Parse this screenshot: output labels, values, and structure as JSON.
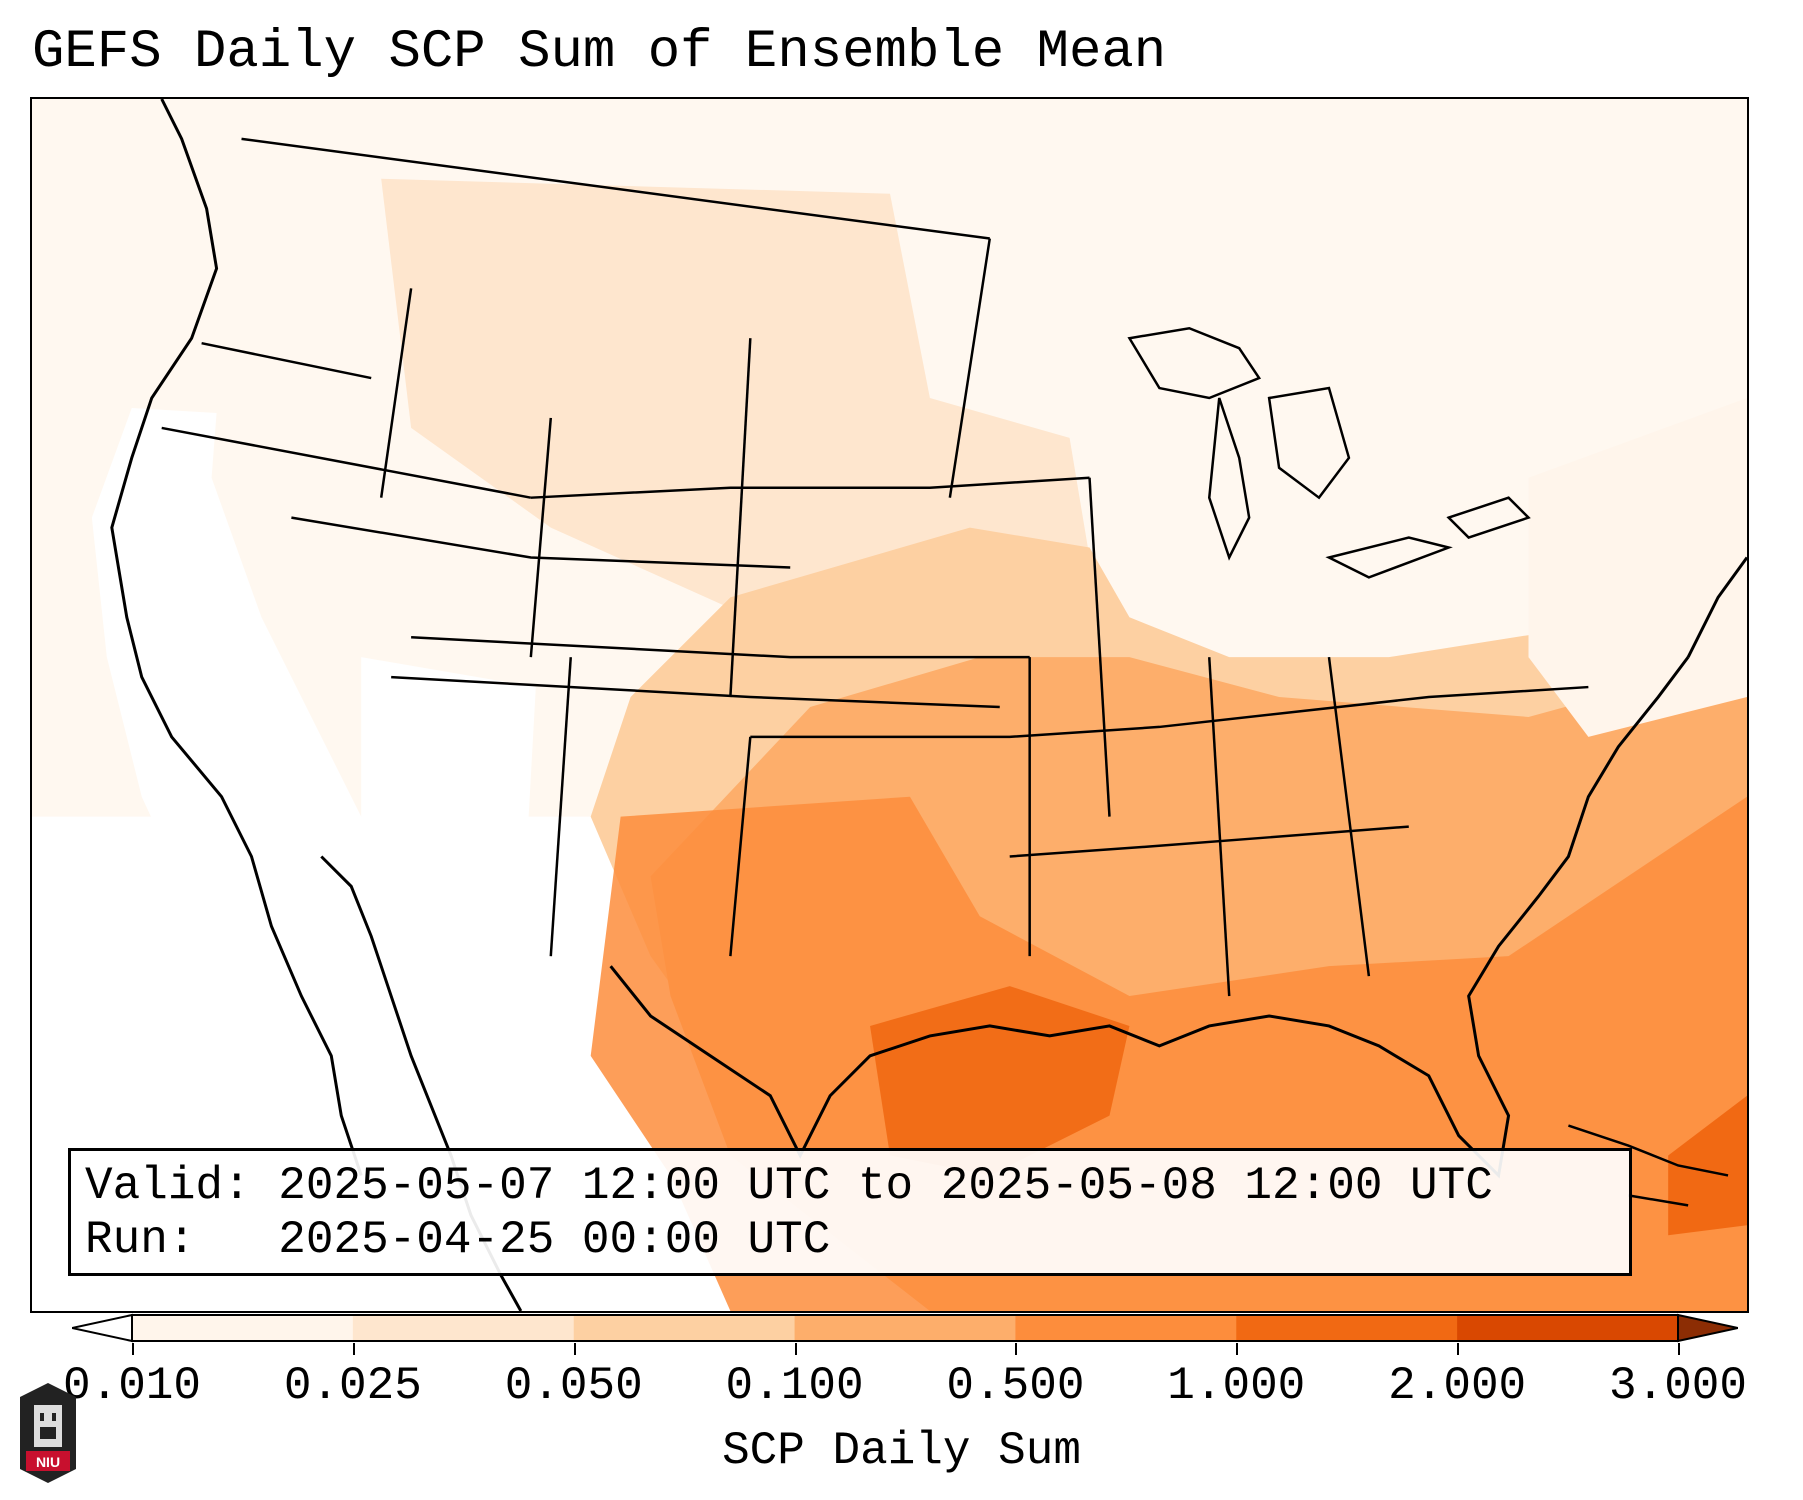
{
  "title": "GEFS Daily SCP Sum of Ensemble Mean",
  "info": {
    "valid_label": "Valid:",
    "valid_value": "2025-05-07 12:00 UTC to 2025-05-08 12:00 UTC",
    "run_label": "Run:",
    "run_value": "2025-04-25 00:00 UTC"
  },
  "colorbar": {
    "label": "SCP Daily Sum",
    "ticks": [
      "0.010",
      "0.025",
      "0.050",
      "0.100",
      "0.500",
      "1.000",
      "2.000",
      "3.000"
    ],
    "colors": [
      "#fff5eb",
      "#fee6ce",
      "#fdd0a2",
      "#fdae6b",
      "#fd8d3c",
      "#f16913",
      "#d94801",
      "#8c2d04"
    ]
  },
  "logo": {
    "text": "NIU",
    "icon": "university-tower-icon"
  }
}
